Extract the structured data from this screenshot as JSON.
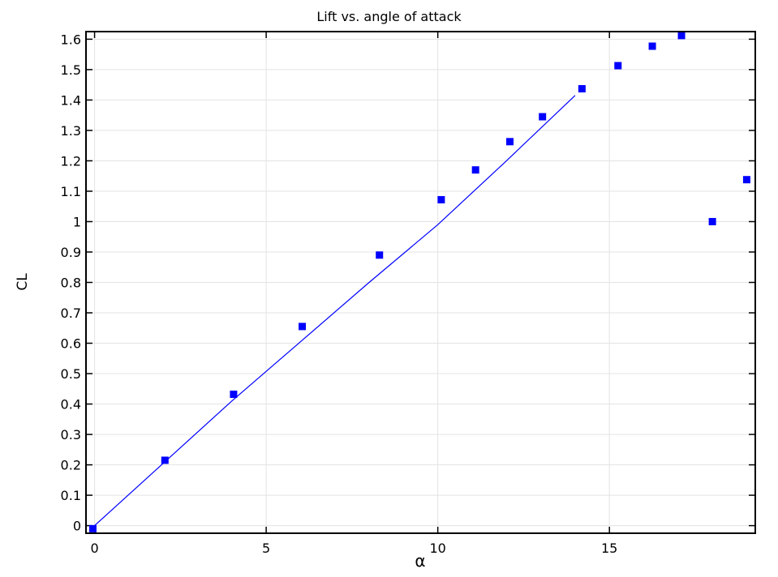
{
  "chart_data": {
    "type": "scatter",
    "title": "Lift vs. angle of attack",
    "xlabel": "α",
    "ylabel": "CL",
    "xlim": [
      -0.25,
      19.25
    ],
    "ylim": [
      -0.025,
      1.625
    ],
    "x_ticks": [
      0,
      5,
      10,
      15
    ],
    "y_ticks": [
      0,
      0.1,
      0.2,
      0.3,
      0.4,
      0.5,
      0.6,
      0.7,
      0.8,
      0.9,
      1,
      1.1,
      1.2,
      1.3,
      1.4,
      1.5,
      1.6
    ],
    "y_tick_labels": [
      "0",
      "0.1",
      "0.2",
      "0.3",
      "0.4",
      "0.5",
      "0.6",
      "0.7",
      "0.8",
      "0.9",
      "1",
      "1.1",
      "1.2",
      "1.3",
      "1.4",
      "1.5",
      "1.6"
    ],
    "grid": true,
    "legend": "none",
    "series": [
      {
        "type": "line",
        "color": "#0000ff",
        "x": [
          -0.1,
          0,
          2,
          4,
          6,
          8,
          10,
          12,
          14
        ],
        "y": [
          -0.012,
          0,
          0.205,
          0.41,
          0.605,
          0.8,
          0.99,
          1.2,
          1.415
        ]
      },
      {
        "type": "scatter",
        "marker": "square",
        "color": "#0000ff",
        "x": [
          -0.05,
          2.05,
          4.05,
          6.05,
          8.3,
          10.1,
          11.1,
          12.1,
          13.05,
          14.2,
          15.25,
          16.25,
          17.1,
          18.0,
          19.0
        ],
        "y": [
          -0.01,
          0.215,
          0.432,
          0.655,
          0.89,
          1.072,
          1.17,
          1.263,
          1.345,
          1.437,
          1.513,
          1.577,
          1.612,
          1.0,
          1.138
        ]
      }
    ]
  }
}
